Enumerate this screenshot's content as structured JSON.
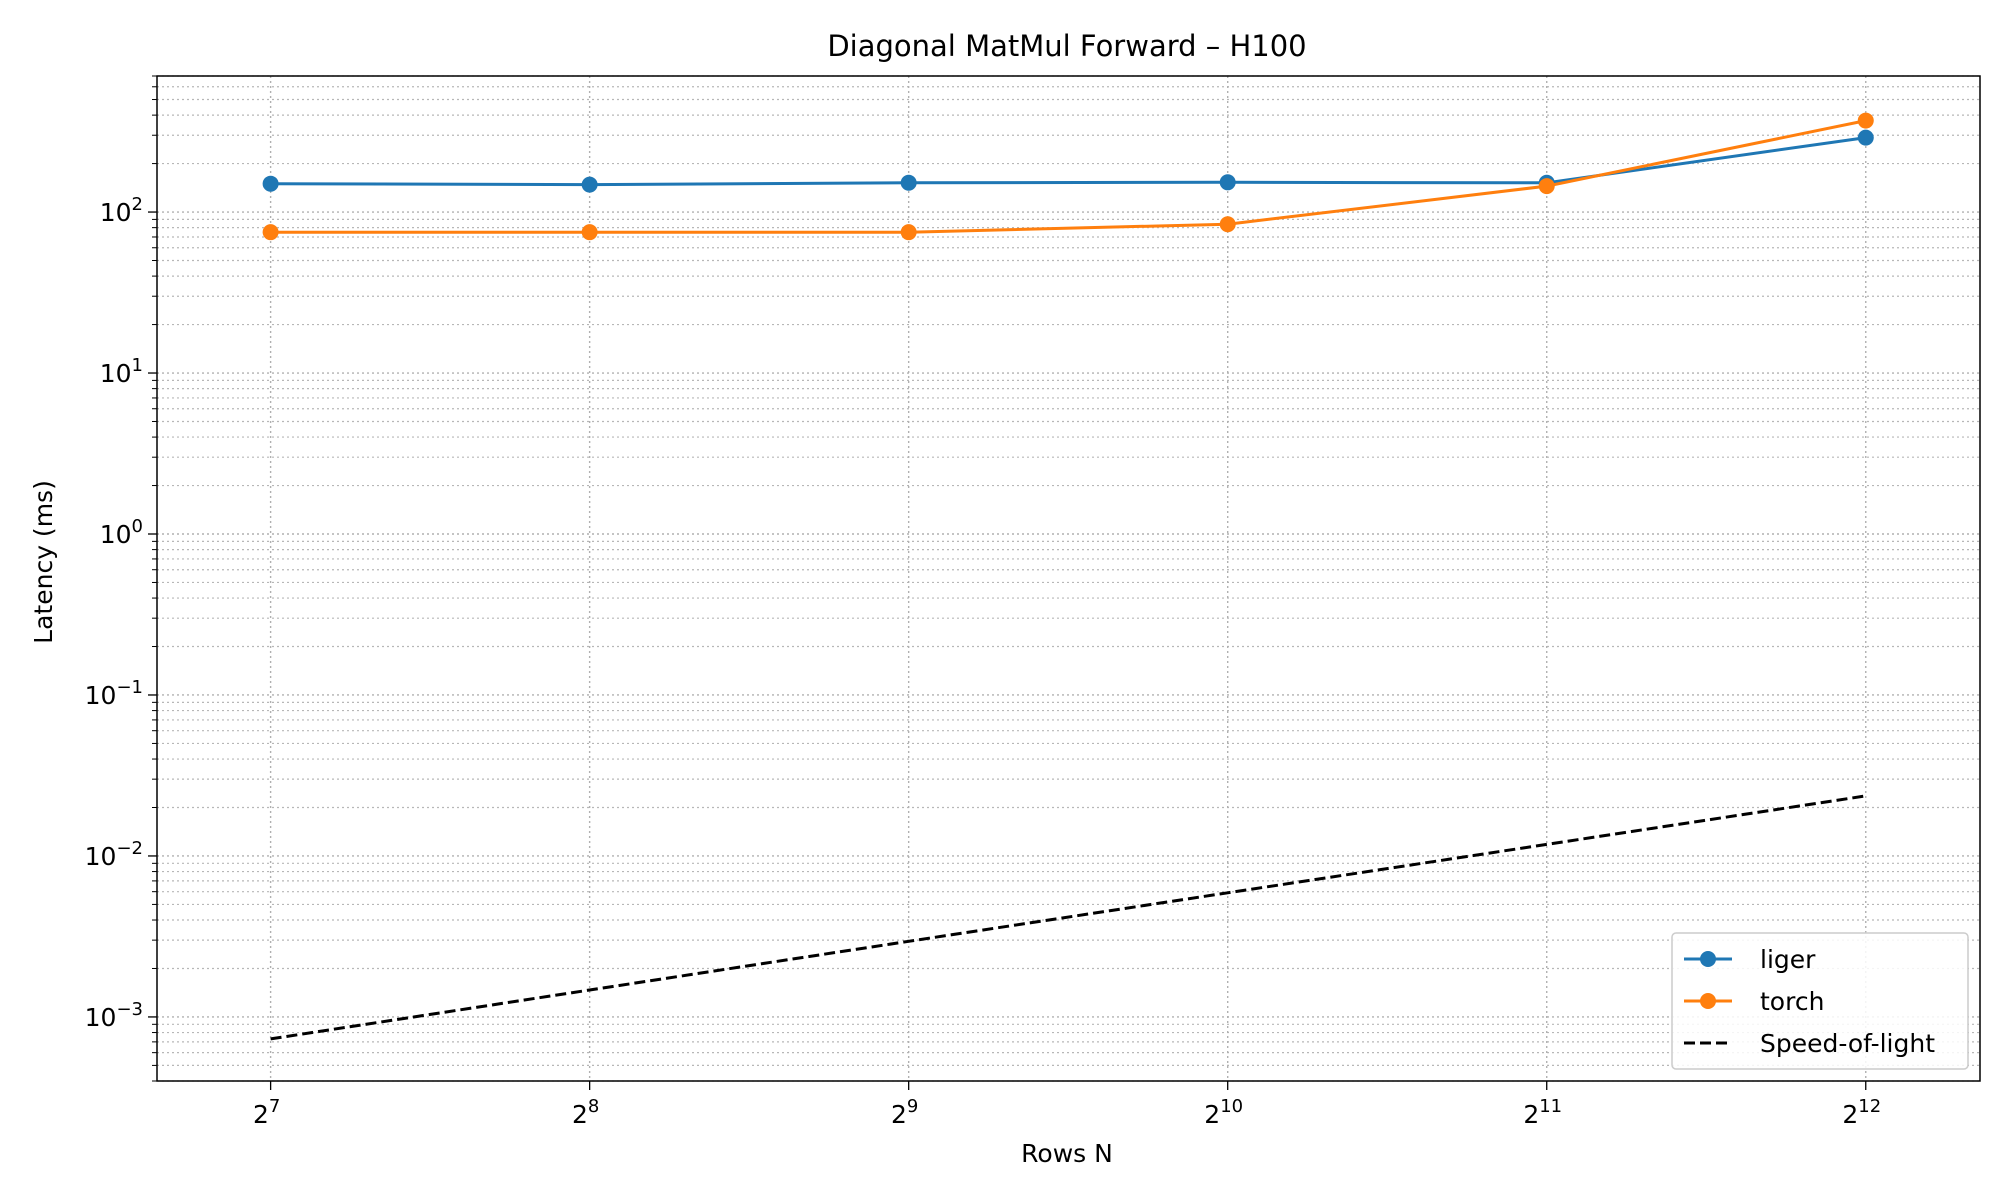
{
  "chart_data": {
    "type": "line",
    "title": "Diagonal MatMul Forward – H100",
    "xlabel": "Rows N",
    "ylabel": "Latency (ms)",
    "x_scale": "log2",
    "y_scale": "log10",
    "x": [
      128,
      256,
      512,
      1024,
      2048,
      4096
    ],
    "x_tick_labels": [
      {
        "base": "2",
        "exp": "7"
      },
      {
        "base": "2",
        "exp": "8"
      },
      {
        "base": "2",
        "exp": "9"
      },
      {
        "base": "2",
        "exp": "10"
      },
      {
        "base": "2",
        "exp": "11"
      },
      {
        "base": "2",
        "exp": "12"
      }
    ],
    "y_ticks": [
      {
        "value": 0.001,
        "base": "10",
        "exp": "−3"
      },
      {
        "value": 0.01,
        "base": "10",
        "exp": "−2"
      },
      {
        "value": 0.1,
        "base": "10",
        "exp": "−1"
      },
      {
        "value": 1,
        "base": "10",
        "exp": "0"
      },
      {
        "value": 10,
        "base": "10",
        "exp": "1"
      },
      {
        "value": 100,
        "base": "10",
        "exp": "2"
      }
    ],
    "xlim": [
      100,
      5250
    ],
    "ylim": [
      0.0004,
      700
    ],
    "grid": true,
    "legend_position": "bottom-right",
    "series": [
      {
        "name": "liger",
        "color": "#1f77b4",
        "style": "solid",
        "marker": "circle",
        "values": [
          150,
          148,
          152,
          153,
          152,
          290
        ]
      },
      {
        "name": "torch",
        "color": "#ff7f0e",
        "style": "solid",
        "marker": "circle",
        "values": [
          75,
          75,
          75,
          84,
          145,
          370
        ]
      },
      {
        "name": "Speed-of-light",
        "color": "#000000",
        "style": "dashed",
        "marker": "none",
        "values": [
          0.00073,
          0.00147,
          0.00295,
          0.0059,
          0.0118,
          0.0236
        ]
      }
    ]
  }
}
